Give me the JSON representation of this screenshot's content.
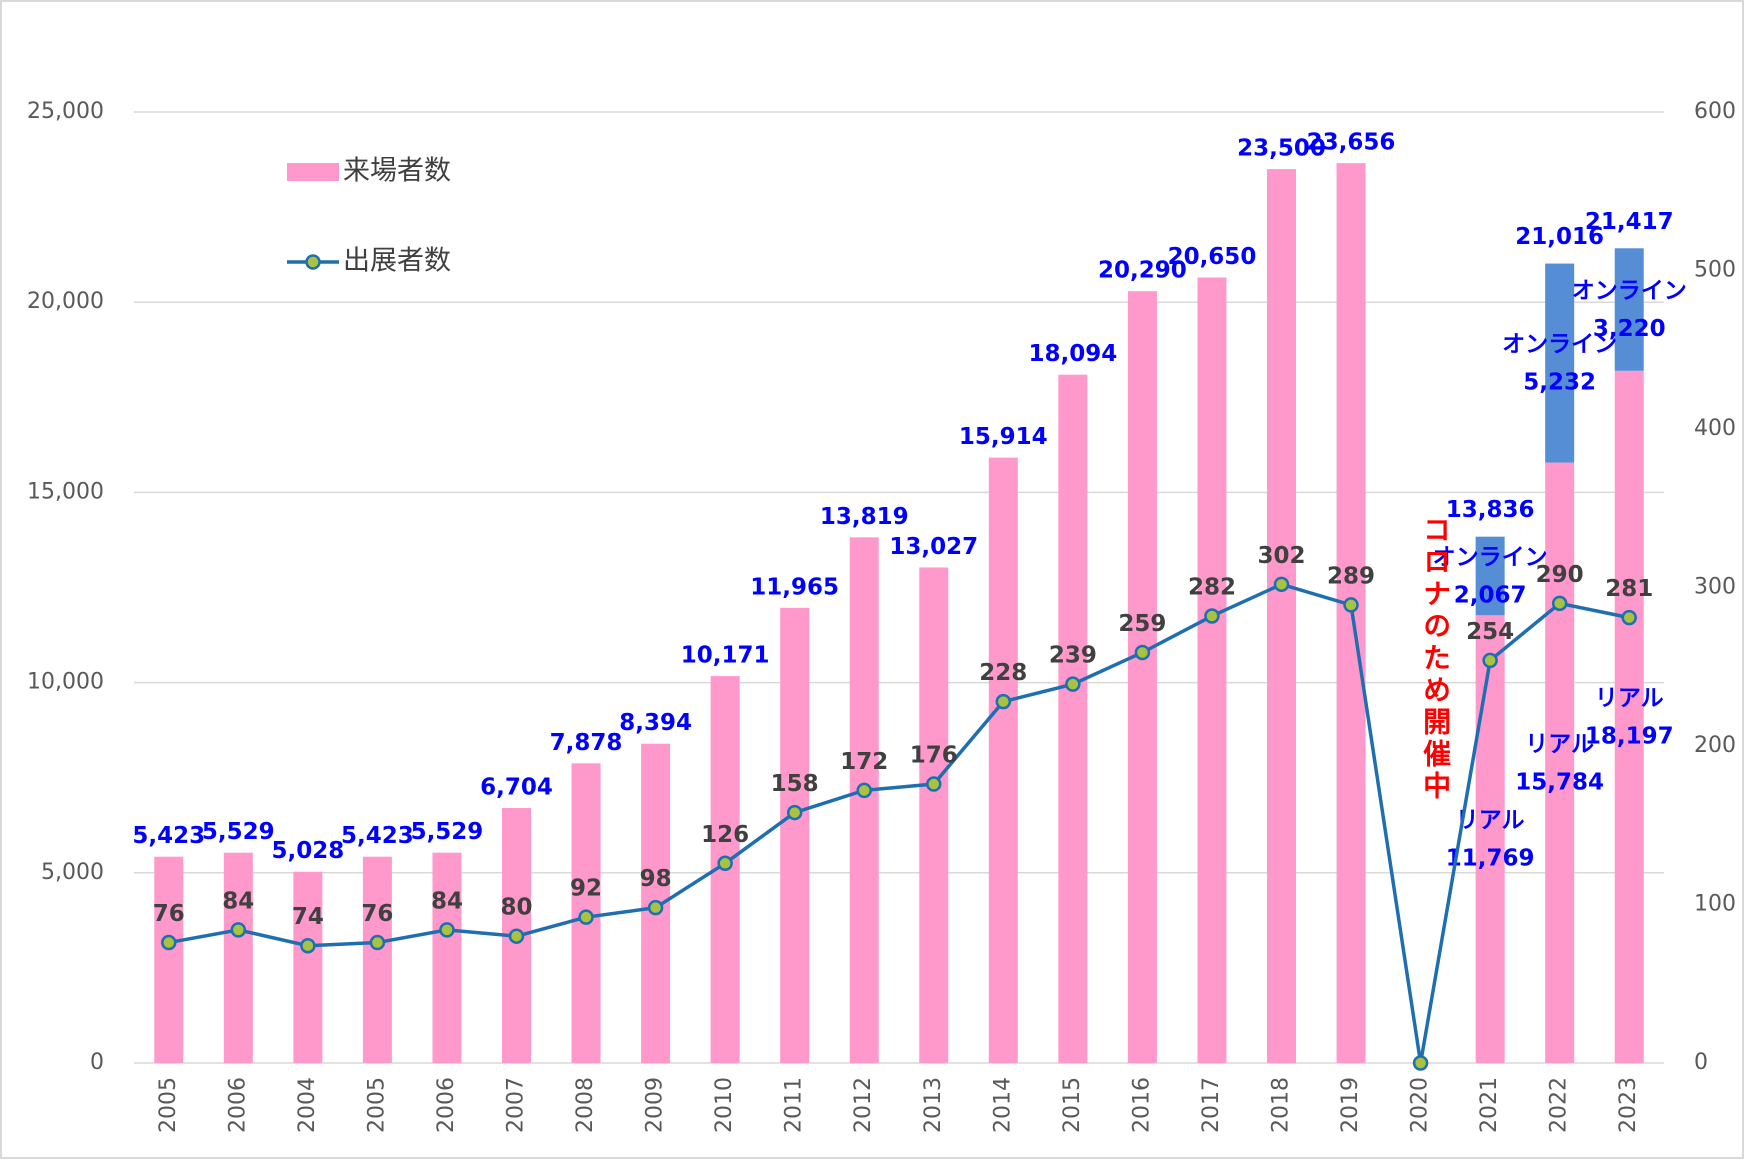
{
  "chart_data": {
    "type": "bar_line",
    "categories": [
      "2005",
      "2006",
      "2004",
      "2005",
      "2006",
      "2007",
      "2008",
      "2009",
      "2010",
      "2011",
      "2012",
      "2013",
      "2014",
      "2015",
      "2016",
      "2017",
      "2018",
      "2019",
      "2020",
      "2021",
      "2022",
      "2023"
    ],
    "series": [
      {
        "name": "来場者数",
        "type": "bar",
        "color": "#ff99cc",
        "values": [
          5423,
          5529,
          5028,
          5423,
          5529,
          6704,
          7878,
          8394,
          10171,
          11965,
          13819,
          13027,
          15914,
          18094,
          20290,
          20650,
          23500,
          23656,
          null,
          11769,
          15784,
          18197
        ],
        "value_labels": [
          "5,423",
          "5,529",
          "5,028",
          "5,423",
          "5,529",
          "6,704",
          "7,878",
          "8,394",
          "10,171",
          "11,965",
          "13,819",
          "13,027",
          "15,914",
          "18,094",
          "20,290",
          "20,650",
          "23,500",
          "23,656",
          null,
          "11,769",
          "15,784",
          "18,197"
        ],
        "segment_label": "リアル"
      },
      {
        "type": "bar",
        "color": "#558ed5",
        "values": [
          null,
          null,
          null,
          null,
          null,
          null,
          null,
          null,
          null,
          null,
          null,
          null,
          null,
          null,
          null,
          null,
          null,
          null,
          null,
          2067,
          5232,
          3220
        ],
        "value_labels": [
          null,
          null,
          null,
          null,
          null,
          null,
          null,
          null,
          null,
          null,
          null,
          null,
          null,
          null,
          null,
          null,
          null,
          null,
          null,
          "2,067",
          "5,232",
          "3,220"
        ],
        "segment_label": "オンライン"
      },
      {
        "name": "出展者数",
        "type": "line",
        "axis": "y2",
        "color": "#1f6fb0",
        "marker_color": "#a9c23f",
        "values": [
          76,
          84,
          74,
          76,
          84,
          80,
          92,
          98,
          126,
          158,
          172,
          176,
          228,
          239,
          259,
          282,
          302,
          289,
          0,
          254,
          290,
          281
        ],
        "value_labels": [
          "76",
          "84",
          "74",
          "76",
          "84",
          "80",
          "92",
          "98",
          "126",
          "158",
          "172",
          "176",
          "228",
          "239",
          "259",
          "282",
          "302",
          "289",
          null,
          "254",
          "290",
          "281"
        ]
      }
    ],
    "stack_totals": [
      null,
      null,
      null,
      null,
      null,
      null,
      null,
      null,
      null,
      null,
      null,
      null,
      null,
      null,
      null,
      null,
      null,
      null,
      null,
      "13,836",
      "21,016",
      "21,417"
    ],
    "annotation": "コロナのため開催中",
    "ylim": [
      0,
      25000
    ],
    "yticks": [
      0,
      {
        "value": 5000,
        "label": "5,000"
      },
      {
        "value": 10000,
        "label": "10,000"
      },
      {
        "value": 15000,
        "label": "15,000"
      },
      {
        "value": 20000,
        "label": "20,000"
      },
      {
        "value": 25000,
        "label": "25,000"
      }
    ],
    "y2lim": [
      0,
      600
    ],
    "y2ticks": [
      0,
      100,
      200,
      300,
      400,
      500,
      600
    ],
    "grid": true,
    "legend": "top-left"
  }
}
